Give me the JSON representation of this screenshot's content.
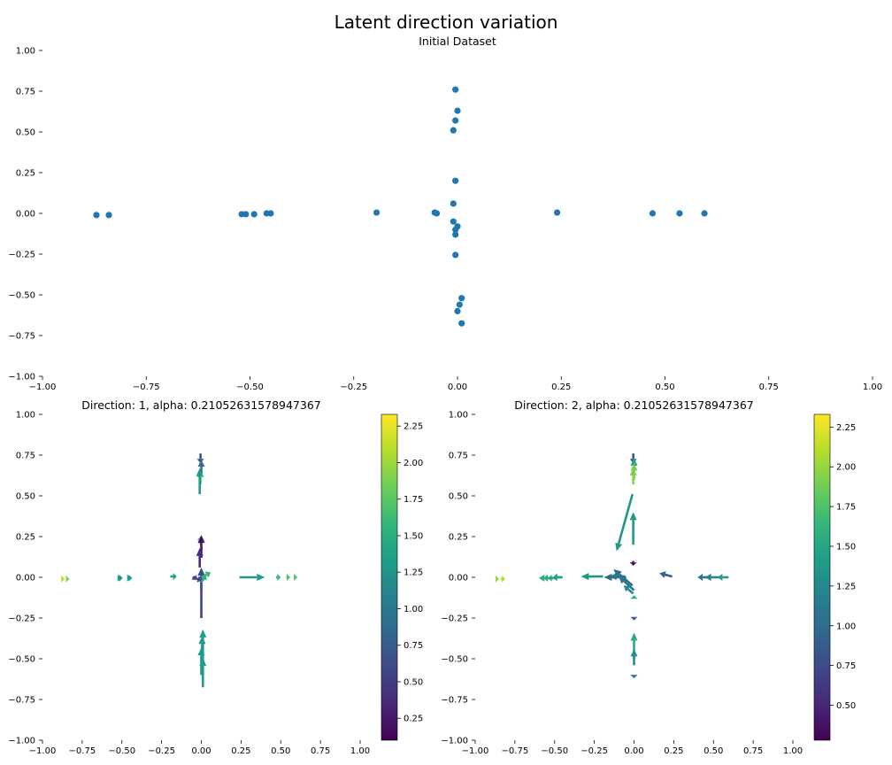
{
  "figure_title": "Latent direction variation",
  "colors": {
    "point": "#1f77b4",
    "tick": "#000000"
  },
  "chart_data": [
    {
      "type": "scatter",
      "title": "Initial Dataset",
      "xlabel": "",
      "ylabel": "",
      "xlim": [
        -1.0,
        1.0
      ],
      "ylim": [
        -1.0,
        1.0
      ],
      "xticks": [
        "−1.00",
        "−0.75",
        "−0.50",
        "−0.25",
        "0.00",
        "0.25",
        "0.50",
        "0.75",
        "1.00"
      ],
      "yticks": [
        "−1.00",
        "−0.75",
        "−0.50",
        "−0.25",
        "0.00",
        "0.25",
        "0.50",
        "0.75",
        "1.00"
      ],
      "grid": false,
      "points": [
        [
          -0.87,
          -0.01
        ],
        [
          -0.84,
          -0.01
        ],
        [
          -0.52,
          -0.005
        ],
        [
          -0.51,
          -0.005
        ],
        [
          -0.49,
          -0.005
        ],
        [
          -0.46,
          0.0
        ],
        [
          -0.45,
          0.0
        ],
        [
          -0.195,
          0.005
        ],
        [
          -0.055,
          0.005
        ],
        [
          -0.05,
          0.0
        ],
        [
          0.24,
          0.005
        ],
        [
          0.47,
          0.0
        ],
        [
          0.535,
          0.0
        ],
        [
          0.595,
          0.0
        ],
        [
          -0.005,
          0.76
        ],
        [
          0.0,
          0.63
        ],
        [
          -0.005,
          0.57
        ],
        [
          -0.01,
          0.51
        ],
        [
          -0.005,
          0.2
        ],
        [
          -0.01,
          0.06
        ],
        [
          -0.01,
          -0.05
        ],
        [
          0.0,
          -0.08
        ],
        [
          -0.005,
          -0.1
        ],
        [
          -0.005,
          -0.13
        ],
        [
          -0.005,
          -0.255
        ],
        [
          0.01,
          -0.52
        ],
        [
          0.005,
          -0.56
        ],
        [
          0.0,
          -0.6
        ],
        [
          0.01,
          -0.675
        ]
      ]
    },
    {
      "type": "quiver",
      "title": "Direction: 1, alpha: 0.21052631578947367",
      "xlim": [
        -1.0,
        1.0
      ],
      "ylim": [
        -1.0,
        1.0
      ],
      "xticks": [
        "−1.00",
        "−0.75",
        "−0.50",
        "−0.25",
        "0.00",
        "0.25",
        "0.50",
        "0.75",
        "1.00"
      ],
      "yticks": [
        "−1.00",
        "−0.75",
        "−0.50",
        "−0.25",
        "0.00",
        "0.25",
        "0.50",
        "0.75",
        "1.00"
      ],
      "colorbar": {
        "colormap": "viridis",
        "vmin": 0.1,
        "vmax": 2.33,
        "ticks": [
          "0.25",
          "0.50",
          "0.75",
          "1.00",
          "1.25",
          "1.50",
          "1.75",
          "2.00",
          "2.25"
        ]
      },
      "arrows": [
        [
          -0.87,
          -0.01,
          0.01,
          0.0,
          2.1
        ],
        [
          -0.84,
          -0.01,
          0.01,
          0.0,
          1.9
        ],
        [
          -0.52,
          -0.005,
          0.015,
          0.0,
          1.3
        ],
        [
          -0.51,
          -0.005,
          0.015,
          0.0,
          1.3
        ],
        [
          -0.46,
          -0.005,
          0.015,
          0.0,
          1.3
        ],
        [
          -0.45,
          -0.005,
          0.015,
          0.0,
          1.3
        ],
        [
          -0.195,
          0.005,
          0.04,
          0.0,
          1.3
        ],
        [
          -0.05,
          0.005,
          0.02,
          -0.02,
          0.5
        ],
        [
          -0.055,
          0.0,
          0.06,
          -0.02,
          0.6
        ],
        [
          0.24,
          0.0,
          0.16,
          0.0,
          1.3
        ],
        [
          0.47,
          0.0,
          0.03,
          0.0,
          1.55
        ],
        [
          0.535,
          0.0,
          0.025,
          0.0,
          1.7
        ],
        [
          0.595,
          0.0,
          0.01,
          0.0,
          1.7
        ],
        [
          -0.005,
          0.76,
          0.0,
          -0.06,
          0.7
        ],
        [
          0.0,
          0.63,
          0.0,
          0.09,
          0.9
        ],
        [
          -0.005,
          0.57,
          0.0,
          0.08,
          1.8
        ],
        [
          -0.01,
          0.51,
          0.0,
          0.16,
          1.3
        ],
        [
          -0.005,
          0.2,
          0.0,
          0.05,
          1.7
        ],
        [
          0.0,
          0.12,
          0.0,
          0.14,
          0.2
        ],
        [
          -0.01,
          0.06,
          0.0,
          0.12,
          0.4
        ],
        [
          0.0,
          -0.25,
          0.0,
          0.31,
          0.55
        ],
        [
          0.0,
          -0.08,
          0.0,
          0.14,
          0.65
        ],
        [
          0.0,
          0.0,
          0.06,
          0.03,
          1.55
        ],
        [
          0.0,
          -0.03,
          0.03,
          0.04,
          1.5
        ],
        [
          0.01,
          -0.52,
          0.0,
          0.2,
          1.3
        ],
        [
          0.005,
          -0.56,
          0.0,
          0.2,
          1.3
        ],
        [
          0.01,
          -0.675,
          0.0,
          0.18,
          1.3
        ],
        [
          0.0,
          -0.6,
          0.0,
          0.17,
          1.3
        ]
      ]
    },
    {
      "type": "quiver",
      "title": "Direction: 2, alpha: 0.21052631578947367",
      "xlim": [
        -1.0,
        1.0
      ],
      "ylim": [
        -1.0,
        1.0
      ],
      "xticks": [
        "−1.00",
        "−0.75",
        "−0.50",
        "−0.25",
        "0.00",
        "0.25",
        "0.50",
        "0.75",
        "1.00"
      ],
      "yticks": [
        "−1.00",
        "−0.75",
        "−0.50",
        "−0.25",
        "0.00",
        "0.25",
        "0.50",
        "0.75",
        "1.00"
      ],
      "colorbar": {
        "colormap": "viridis",
        "vmin": 0.28,
        "vmax": 2.33,
        "ticks": [
          "0.50",
          "0.75",
          "1.00",
          "1.25",
          "1.50",
          "1.75",
          "2.00",
          "2.25"
        ]
      },
      "arrows": [
        [
          -0.87,
          -0.01,
          0.02,
          0.0,
          2.0
        ],
        [
          -0.84,
          -0.01,
          0.03,
          0.0,
          2.1
        ],
        [
          -0.52,
          -0.005,
          -0.08,
          0.0,
          1.55
        ],
        [
          -0.51,
          -0.005,
          -0.06,
          0.0,
          1.55
        ],
        [
          -0.49,
          -0.005,
          -0.05,
          0.0,
          1.5
        ],
        [
          -0.46,
          0.0,
          -0.05,
          0.0,
          1.45
        ],
        [
          -0.45,
          0.0,
          -0.06,
          0.0,
          1.45
        ],
        [
          -0.195,
          0.005,
          -0.14,
          0.0,
          1.35
        ],
        [
          -0.055,
          0.005,
          -0.1,
          0.0,
          1.2
        ],
        [
          -0.05,
          0.0,
          -0.14,
          0.0,
          1.0
        ],
        [
          0.24,
          0.005,
          -0.08,
          0.02,
          0.9
        ],
        [
          0.47,
          0.0,
          -0.07,
          0.0,
          1.05
        ],
        [
          0.535,
          0.0,
          -0.09,
          0.0,
          1.2
        ],
        [
          0.595,
          0.0,
          -0.07,
          0.0,
          1.4
        ],
        [
          -0.005,
          0.76,
          0.0,
          -0.06,
          0.85
        ],
        [
          0.0,
          0.63,
          0.0,
          0.1,
          1.5
        ],
        [
          -0.005,
          0.57,
          0.0,
          0.1,
          1.95
        ],
        [
          0.0,
          0.6,
          0.0,
          0.1,
          1.9
        ],
        [
          -0.01,
          0.51,
          -0.1,
          -0.35,
          1.35
        ],
        [
          -0.005,
          0.2,
          0.0,
          0.2,
          1.35
        ],
        [
          -0.005,
          0.1,
          0.0,
          -0.03,
          0.4
        ],
        [
          -0.01,
          -0.05,
          -0.12,
          0.1,
          1.0
        ],
        [
          0.0,
          -0.08,
          -0.1,
          0.09,
          1.1
        ],
        [
          -0.005,
          -0.1,
          -0.06,
          0.05,
          1.25
        ],
        [
          0.0,
          -0.13,
          0.0,
          0.02,
          1.55
        ],
        [
          0.0,
          -0.255,
          0.0,
          -0.01,
          0.9
        ],
        [
          0.0,
          -0.5,
          0.0,
          0.16,
          1.55
        ],
        [
          0.0,
          -0.54,
          0.0,
          0.1,
          1.3
        ],
        [
          0.0,
          -0.6,
          0.0,
          -0.02,
          1.1
        ],
        [
          0.0,
          -0.67,
          0.0,
          0.0,
          1.0
        ]
      ]
    }
  ]
}
